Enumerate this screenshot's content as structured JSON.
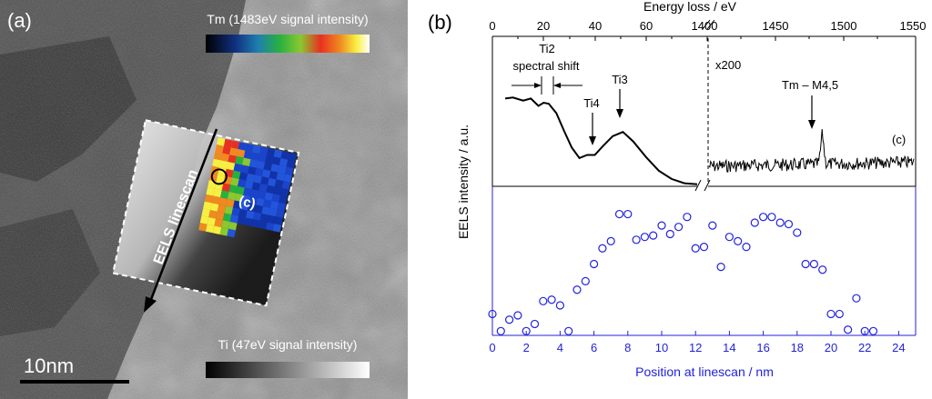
{
  "panel_a": {
    "label": "(a)",
    "tm_map_label": "Tm (1483eV signal intensity)",
    "ti_map_label": "Ti (47eV signal intensity)",
    "linescan_label": "EELS linescan",
    "region_label": "(c)",
    "scale_bar_label": "10nm"
  },
  "panel_b": {
    "label": "(b)",
    "top_axis_title": "Energy loss / eV",
    "left_axis_title": "EELS intensity / a.u.",
    "bottom_axis_title": "Position at linescan / nm",
    "ti2_label": "Ti2",
    "shift_label": "spectral shift",
    "ti4_label": "Ti4",
    "ti3_label": "Ti3",
    "x200_label": "x200",
    "tm_peak_label": "Tm – M4,5",
    "spectrum_region_label": "(c)",
    "top_ticks_left": [
      "0",
      "20",
      "40",
      "60",
      "1400"
    ],
    "top_ticks_right": [
      "1450",
      "1500",
      "1550"
    ]
  },
  "colors": {
    "linescan_blue": "#2222dd",
    "black": "#000000"
  },
  "chart_data": {
    "type": "scatter",
    "title": "",
    "xlabel": "Position at linescan / nm",
    "ylabel": "EELS intensity / a.u.",
    "xlim": [
      0,
      25
    ],
    "ylim": [
      0,
      1
    ],
    "xticks": [
      "0",
      "2",
      "4",
      "6",
      "8",
      "10",
      "12",
      "14",
      "16",
      "18",
      "20",
      "22",
      "24"
    ],
    "series": [
      {
        "name": "linescan",
        "x": [
          0,
          0.5,
          1.0,
          1.5,
          2.0,
          2.5,
          3.0,
          3.5,
          4.0,
          4.5,
          5.0,
          5.5,
          6.0,
          6.5,
          7.0,
          7.5,
          8.0,
          8.5,
          9.0,
          9.5,
          10.0,
          10.5,
          11.0,
          11.5,
          12.0,
          12.5,
          13.0,
          13.5,
          14.0,
          14.5,
          15.0,
          15.5,
          16.0,
          16.5,
          17.0,
          17.5,
          18.0,
          18.5,
          19.0,
          19.5,
          20.0,
          20.5,
          21.0,
          21.5,
          22.0,
          22.5
        ],
        "y": [
          0.15,
          0.03,
          0.11,
          0.14,
          0.03,
          0.08,
          0.24,
          0.25,
          0.21,
          0.03,
          0.32,
          0.38,
          0.5,
          0.61,
          0.66,
          0.85,
          0.85,
          0.67,
          0.69,
          0.7,
          0.77,
          0.71,
          0.76,
          0.83,
          0.61,
          0.62,
          0.77,
          0.48,
          0.69,
          0.66,
          0.62,
          0.79,
          0.83,
          0.83,
          0.79,
          0.78,
          0.72,
          0.5,
          0.5,
          0.46,
          0.15,
          0.15,
          0.04,
          0.26,
          0.03,
          0.03
        ]
      }
    ],
    "spectrum": {
      "type": "line",
      "x_range_low_eV": [
        0,
        80
      ],
      "x_range_high_eV": [
        1400,
        1550
      ],
      "low_loss_x_eV": [
        5,
        8,
        12,
        15,
        18,
        20,
        22,
        25,
        28,
        31,
        34,
        37,
        40,
        43,
        47,
        51,
        55,
        60,
        65,
        70,
        75,
        80
      ],
      "low_loss_y": [
        0.84,
        0.85,
        0.82,
        0.84,
        0.77,
        0.8,
        0.79,
        0.7,
        0.53,
        0.37,
        0.27,
        0.3,
        0.3,
        0.38,
        0.48,
        0.52,
        0.43,
        0.28,
        0.15,
        0.07,
        0.03,
        0.02
      ],
      "peaks_eV": {
        "Ti2": 20,
        "Ti4": 40,
        "Ti3": 47
      },
      "tm_peak_eV": 1483,
      "high_loss_scale": "x200"
    }
  }
}
